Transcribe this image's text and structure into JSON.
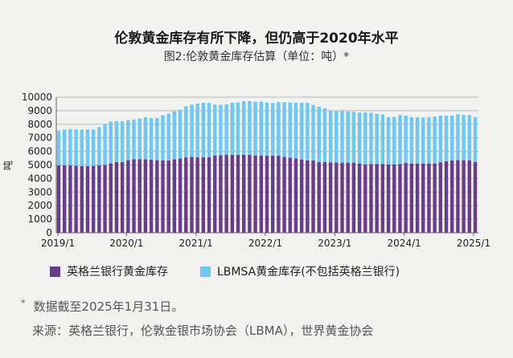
{
  "colors": {
    "boe": "#6a3d8a",
    "lbma": "#6ec8f7",
    "grid": "#b9b9b9",
    "axis": "#666666"
  },
  "chart_data": {
    "type": "bar",
    "stacked": true,
    "title": "伦敦黄金库存有所下降，但仍高于2020年水平",
    "subtitle": "图2:伦敦黄金库存估算（单位：吨）*",
    "ylabel": "吨",
    "xlabel": "",
    "ylim": [
      0,
      10000
    ],
    "yticks": [
      0,
      1000,
      2000,
      3000,
      4000,
      5000,
      6000,
      7000,
      8000,
      9000,
      10000
    ],
    "xtick_labels": [
      "2019/1",
      "2020/1",
      "2021/1",
      "2022/1",
      "2023/1",
      "2024/1",
      "2025/1"
    ],
    "x_start": "2019/1",
    "x_end": "2025/1",
    "frequency": "monthly",
    "grid": true,
    "legend_position": "bottom",
    "series": [
      {
        "name": "英格兰银行黄金库存",
        "color": "#6a3d8a",
        "values": [
          4970,
          4970,
          4970,
          4950,
          4910,
          4910,
          4930,
          4970,
          5000,
          5110,
          5210,
          5210,
          5350,
          5420,
          5420,
          5420,
          5380,
          5350,
          5330,
          5330,
          5420,
          5480,
          5560,
          5600,
          5560,
          5560,
          5560,
          5680,
          5720,
          5740,
          5740,
          5740,
          5740,
          5740,
          5700,
          5700,
          5680,
          5680,
          5680,
          5600,
          5540,
          5480,
          5400,
          5330,
          5330,
          5210,
          5210,
          5190,
          5190,
          5170,
          5170,
          5170,
          5110,
          5030,
          5070,
          5070,
          5070,
          5030,
          5030,
          5070,
          5150,
          5110,
          5110,
          5110,
          5110,
          5110,
          5190,
          5270,
          5330,
          5350,
          5350,
          5330,
          5210
        ]
      },
      {
        "name": "LBMSA黄金库存(不包括英格兰银行)",
        "color": "#6ec8f7",
        "values": [
          2570,
          2640,
          2680,
          2680,
          2700,
          2700,
          2680,
          2820,
          2990,
          3090,
          3020,
          3020,
          2950,
          2920,
          3000,
          3100,
          3080,
          3110,
          3330,
          3450,
          3530,
          3590,
          3770,
          3850,
          3970,
          4030,
          4010,
          3770,
          3710,
          3730,
          3850,
          3870,
          3960,
          3960,
          3960,
          3980,
          3930,
          3890,
          3950,
          4030,
          4050,
          4110,
          4190,
          4240,
          4080,
          4080,
          3960,
          3820,
          3780,
          3800,
          3780,
          3750,
          3750,
          3830,
          3770,
          3690,
          3650,
          3490,
          3510,
          3610,
          3490,
          3410,
          3410,
          3390,
          3410,
          3450,
          3450,
          3370,
          3310,
          3390,
          3330,
          3350,
          3310
        ]
      }
    ]
  },
  "footnote": "数据截至2025年1月31日。",
  "footnote_marker": "*",
  "source": "来源：英格兰银行，伦敦金银市场协会（LBMA），世界黄金协会"
}
